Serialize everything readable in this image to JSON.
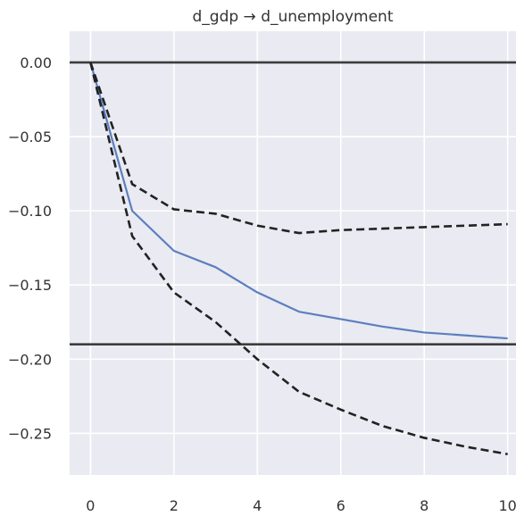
{
  "chart_data": {
    "type": "line",
    "title": "d_gdp → d_unemployment",
    "xlabel": "",
    "ylabel": "",
    "xlim": [
      -0.5,
      10.2
    ],
    "ylim": [
      -0.278,
      0.021
    ],
    "x_ticks": [
      0,
      2,
      4,
      6,
      8,
      10
    ],
    "x_tick_labels": [
      "0",
      "2",
      "4",
      "6",
      "8",
      "10"
    ],
    "y_ticks": [
      0.0,
      -0.05,
      -0.1,
      -0.15,
      -0.2,
      -0.25
    ],
    "y_tick_labels": [
      "0.00",
      "−0.05",
      "−0.10",
      "−0.15",
      "−0.20",
      "−0.25"
    ],
    "grid": true,
    "background": "#eaeaf2",
    "hlines": [
      {
        "y": 0.0,
        "color": "#3d3d3d"
      },
      {
        "y": -0.19,
        "color": "#3d3d3d"
      }
    ],
    "x": [
      0,
      1,
      2,
      3,
      4,
      5,
      6,
      7,
      8,
      9,
      10
    ],
    "series": [
      {
        "style": "solid",
        "color": "#5b7fbf",
        "values": [
          0.0,
          -0.1,
          -0.127,
          -0.138,
          -0.155,
          -0.168,
          -0.173,
          -0.178,
          -0.182,
          -0.184,
          -0.186
        ]
      },
      {
        "style": "dashed",
        "color": "#222222",
        "values": [
          0.0,
          -0.082,
          -0.099,
          -0.102,
          -0.11,
          -0.115,
          -0.113,
          -0.112,
          -0.111,
          -0.11,
          -0.109
        ]
      },
      {
        "style": "dashed",
        "color": "#222222",
        "values": [
          0.0,
          -0.117,
          -0.155,
          -0.175,
          -0.2,
          -0.222,
          -0.234,
          -0.245,
          -0.253,
          -0.259,
          -0.264
        ]
      }
    ]
  }
}
